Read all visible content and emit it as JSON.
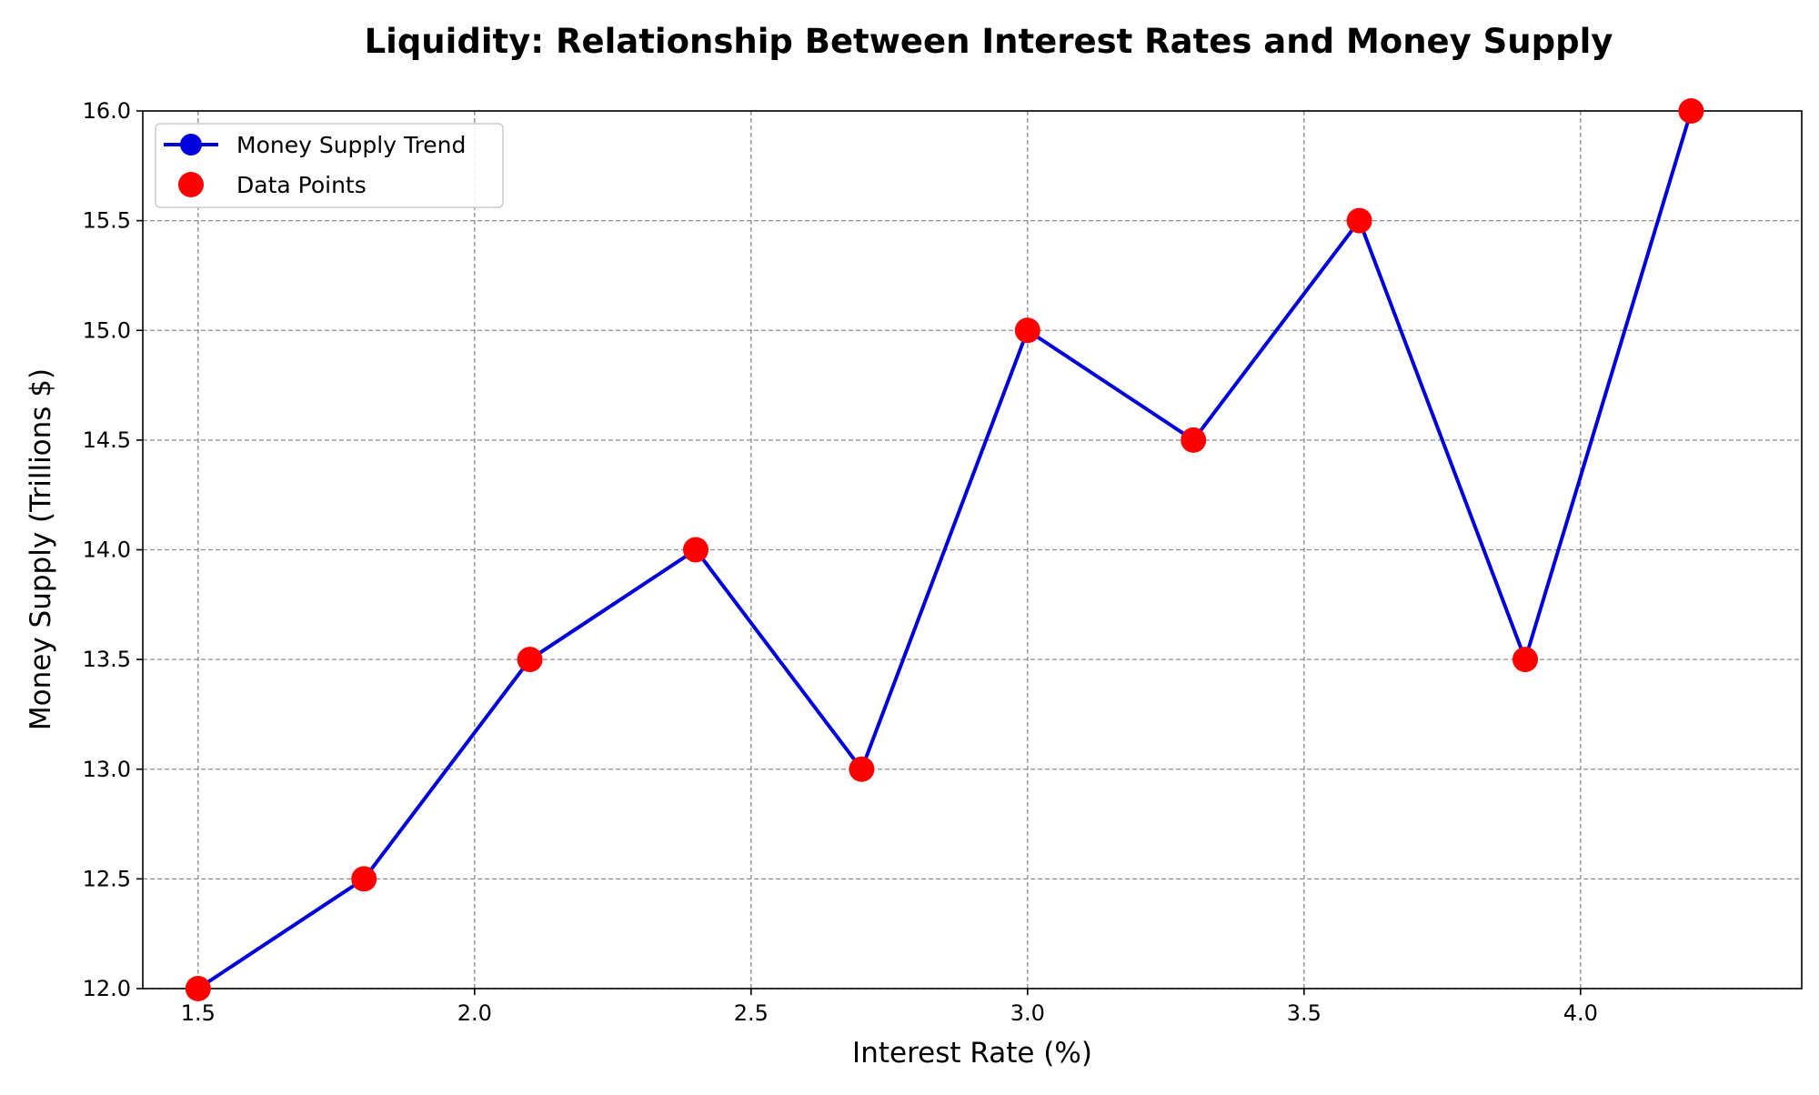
{
  "chart_data": {
    "type": "line",
    "title": "Liquidity: Relationship Between Interest Rates and Money Supply",
    "xlabel": "Interest Rate (%)",
    "ylabel": "Money Supply (Trillions $)",
    "x": [
      1.5,
      1.8,
      2.1,
      2.4,
      2.7,
      3.0,
      3.3,
      3.6,
      3.9,
      4.2
    ],
    "series": [
      {
        "name": "Money Supply Trend",
        "values": [
          12.0,
          12.5,
          13.5,
          14.0,
          13.0,
          15.0,
          14.5,
          15.5,
          13.5,
          16.0
        ],
        "color": "#0000dd",
        "style": "line"
      },
      {
        "name": "Data Points",
        "values": [
          12.0,
          12.5,
          13.5,
          14.0,
          13.0,
          15.0,
          14.5,
          15.5,
          13.5,
          16.0
        ],
        "color": "#ff0000",
        "style": "scatter"
      }
    ],
    "xlim": [
      1.4,
      4.4
    ],
    "ylim": [
      12.0,
      16.0
    ],
    "xticks": [
      "1.5",
      "2.0",
      "2.5",
      "3.0",
      "3.5",
      "4.0"
    ],
    "yticks": [
      "12.0",
      "12.5",
      "13.0",
      "13.5",
      "14.0",
      "14.5",
      "15.0",
      "15.5",
      "16.0"
    ],
    "grid": true,
    "legend_position": "top-left"
  }
}
